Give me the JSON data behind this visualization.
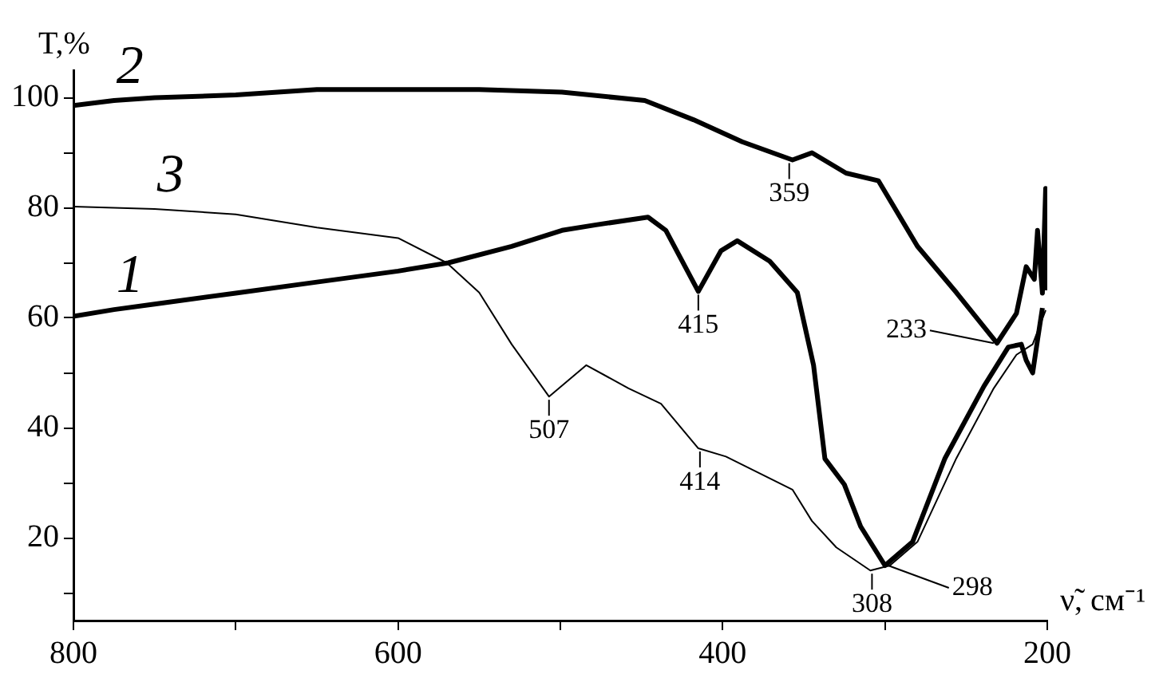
{
  "chart_data": {
    "type": "line",
    "xlabel": "ν̃, см⁻¹",
    "ylabel": "T,%",
    "xlim": [
      800,
      200
    ],
    "xticks": [
      800,
      {
        "value": 700,
        "label": null
      },
      600,
      {
        "value": 500,
        "label": null
      },
      400,
      {
        "value": 300,
        "label": null
      },
      200
    ],
    "ylim": [
      5,
      105
    ],
    "yticks": [
      {
        "value": 10,
        "label": null
      },
      20,
      {
        "value": 30,
        "label": null
      },
      40,
      {
        "value": 50,
        "label": null
      },
      60,
      {
        "value": 70,
        "label": null
      },
      80,
      {
        "value": 90,
        "label": null
      },
      100
    ],
    "grid": false,
    "legend": false,
    "marker": "none",
    "line_style": "solid",
    "series": [
      {
        "name": "1",
        "color": "#000000",
        "x": [
          800,
          775,
          750,
          700,
          650,
          600,
          569,
          530,
          499,
          478,
          446,
          435,
          415,
          401,
          391,
          371,
          354,
          344,
          337,
          325,
          315,
          300,
          283,
          263,
          239,
          224,
          216,
          213,
          209,
          206,
          203
        ],
        "values": [
          60.3,
          61.5,
          62.5,
          64.5,
          66.5,
          68.5,
          70,
          73,
          75.9,
          76.9,
          78.3,
          75.9,
          64.8,
          72.2,
          74,
          70.3,
          64.6,
          51.4,
          34.4,
          29.7,
          22.1,
          15,
          19.3,
          34.5,
          47.6,
          54.7,
          55.2,
          52.3,
          50,
          56,
          61.8
        ]
      },
      {
        "name": "2",
        "color": "#000000",
        "x": [
          800,
          775,
          750,
          700,
          650,
          600,
          550,
          499,
          448,
          418,
          388,
          357,
          345,
          324,
          304,
          280,
          256,
          231,
          219,
          213,
          208,
          206,
          203,
          201,
          200
        ],
        "values": [
          98.6,
          99.5,
          100,
          100.5,
          101.5,
          101.5,
          101.5,
          101,
          99.5,
          96,
          92,
          88.7,
          90,
          86.3,
          84.9,
          73,
          64.6,
          55.4,
          60.8,
          69.3,
          67,
          75.9,
          64.5,
          83.5,
          65
        ]
      },
      {
        "name": "3",
        "color": "#000000",
        "x": [
          800,
          750,
          700,
          650,
          600,
          570,
          550,
          530,
          507,
          484,
          458,
          438,
          415,
          398,
          357,
          345,
          330,
          309,
          297,
          280,
          256,
          233,
          219,
          209,
          201
        ],
        "values": [
          80.2,
          79.8,
          78.8,
          76.4,
          74.5,
          70,
          64.6,
          55.2,
          45.7,
          51.4,
          47.2,
          44.4,
          36.3,
          34.8,
          28.8,
          23.1,
          18.3,
          14.1,
          15,
          19.3,
          34.5,
          47.2,
          53.3,
          55.2,
          61.4
        ]
      }
    ],
    "annotations": [
      {
        "text": "507",
        "x": 507,
        "y": 45.7
      },
      {
        "text": "415",
        "x": 415,
        "y": 64.8
      },
      {
        "text": "359",
        "x": 359,
        "y": 88.7
      },
      {
        "text": "414",
        "x": 414,
        "y": 36.3
      },
      {
        "text": "308",
        "x": 308,
        "y": 14.1
      },
      {
        "text": "298",
        "x": 298,
        "y": 15
      },
      {
        "text": "233",
        "x": 233,
        "y": 55.4
      }
    ]
  }
}
